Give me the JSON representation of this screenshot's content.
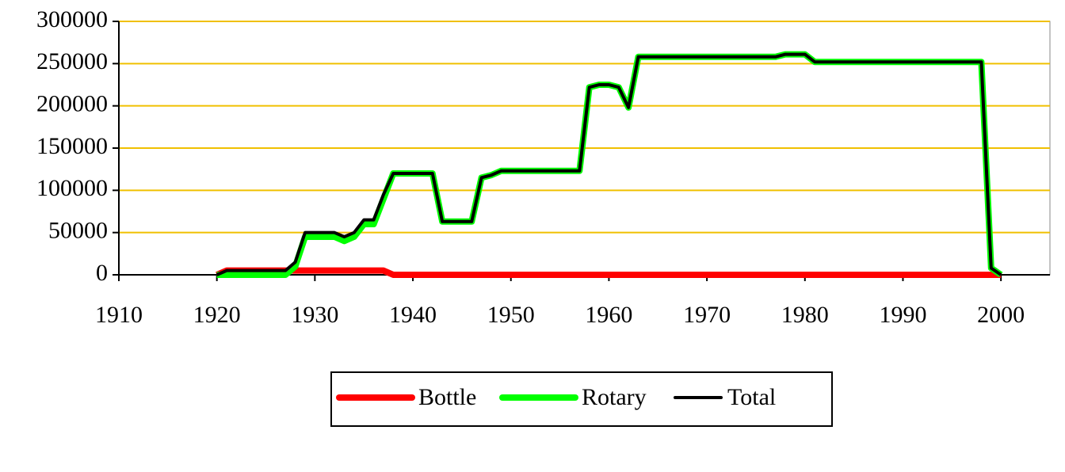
{
  "chart_data": {
    "type": "line",
    "x": [
      1920,
      1921,
      1922,
      1923,
      1924,
      1925,
      1926,
      1927,
      1928,
      1929,
      1930,
      1931,
      1932,
      1933,
      1934,
      1935,
      1936,
      1937,
      1938,
      1939,
      1940,
      1941,
      1942,
      1943,
      1944,
      1945,
      1946,
      1947,
      1948,
      1949,
      1950,
      1951,
      1952,
      1953,
      1954,
      1955,
      1956,
      1957,
      1958,
      1959,
      1960,
      1961,
      1962,
      1963,
      1964,
      1965,
      1966,
      1967,
      1968,
      1969,
      1970,
      1971,
      1972,
      1973,
      1974,
      1975,
      1976,
      1977,
      1978,
      1979,
      1980,
      1981,
      1982,
      1983,
      1984,
      1985,
      1986,
      1987,
      1988,
      1989,
      1990,
      1991,
      1992,
      1993,
      1994,
      1995,
      1996,
      1997,
      1998,
      1999,
      2000
    ],
    "series": [
      {
        "name": "Bottle",
        "color": "#ff0000",
        "values": [
          0,
          5000,
          5000,
          5000,
          5000,
          5000,
          5000,
          5000,
          5000,
          5000,
          5000,
          5000,
          5000,
          5000,
          5000,
          5000,
          5000,
          5000,
          0,
          0,
          0,
          0,
          0,
          0,
          0,
          0,
          0,
          0,
          0,
          0,
          0,
          0,
          0,
          0,
          0,
          0,
          0,
          0,
          0,
          0,
          0,
          0,
          0,
          0,
          0,
          0,
          0,
          0,
          0,
          0,
          0,
          0,
          0,
          0,
          0,
          0,
          0,
          0,
          0,
          0,
          0,
          0,
          0,
          0,
          0,
          0,
          0,
          0,
          0,
          0,
          0,
          0,
          0,
          0,
          0,
          0,
          0,
          0,
          0,
          0,
          0
        ]
      },
      {
        "name": "Rotary",
        "color": "#00ff00",
        "values": [
          0,
          0,
          0,
          0,
          0,
          0,
          0,
          0,
          10000,
          45000,
          45000,
          45000,
          45000,
          40000,
          45000,
          60000,
          60000,
          90000,
          120000,
          120000,
          120000,
          120000,
          120000,
          63000,
          63000,
          63000,
          63000,
          115000,
          118000,
          123000,
          123000,
          123000,
          123000,
          123000,
          123000,
          123000,
          123000,
          123000,
          222000,
          225000,
          225000,
          222000,
          198000,
          258000,
          258000,
          258000,
          258000,
          258000,
          258000,
          258000,
          258000,
          258000,
          258000,
          258000,
          258000,
          258000,
          258000,
          258000,
          261000,
          261000,
          261000,
          252000,
          252000,
          252000,
          252000,
          252000,
          252000,
          252000,
          252000,
          252000,
          252000,
          252000,
          252000,
          252000,
          252000,
          252000,
          252000,
          252000,
          252000,
          8000,
          0
        ]
      },
      {
        "name": "Total",
        "color": "#000000",
        "values": [
          0,
          5000,
          5000,
          5000,
          5000,
          5000,
          5000,
          5000,
          15000,
          50000,
          50000,
          50000,
          50000,
          45000,
          50000,
          65000,
          65000,
          95000,
          120000,
          120000,
          120000,
          120000,
          120000,
          63000,
          63000,
          63000,
          63000,
          115000,
          118000,
          123000,
          123000,
          123000,
          123000,
          123000,
          123000,
          123000,
          123000,
          123000,
          222000,
          225000,
          225000,
          222000,
          198000,
          258000,
          258000,
          258000,
          258000,
          258000,
          258000,
          258000,
          258000,
          258000,
          258000,
          258000,
          258000,
          258000,
          258000,
          258000,
          261000,
          261000,
          261000,
          252000,
          252000,
          252000,
          252000,
          252000,
          252000,
          252000,
          252000,
          252000,
          252000,
          252000,
          252000,
          252000,
          252000,
          252000,
          252000,
          252000,
          252000,
          8000,
          0
        ]
      }
    ],
    "xlim": [
      1910,
      2005
    ],
    "xticks": [
      1910,
      1920,
      1930,
      1940,
      1950,
      1960,
      1970,
      1980,
      1990,
      2000
    ],
    "ylim": [
      0,
      300000
    ],
    "yticks": [
      0,
      50000,
      100000,
      150000,
      200000,
      250000,
      300000
    ],
    "grid": true,
    "grid_color": "#f0c000",
    "legend": "bottom"
  }
}
